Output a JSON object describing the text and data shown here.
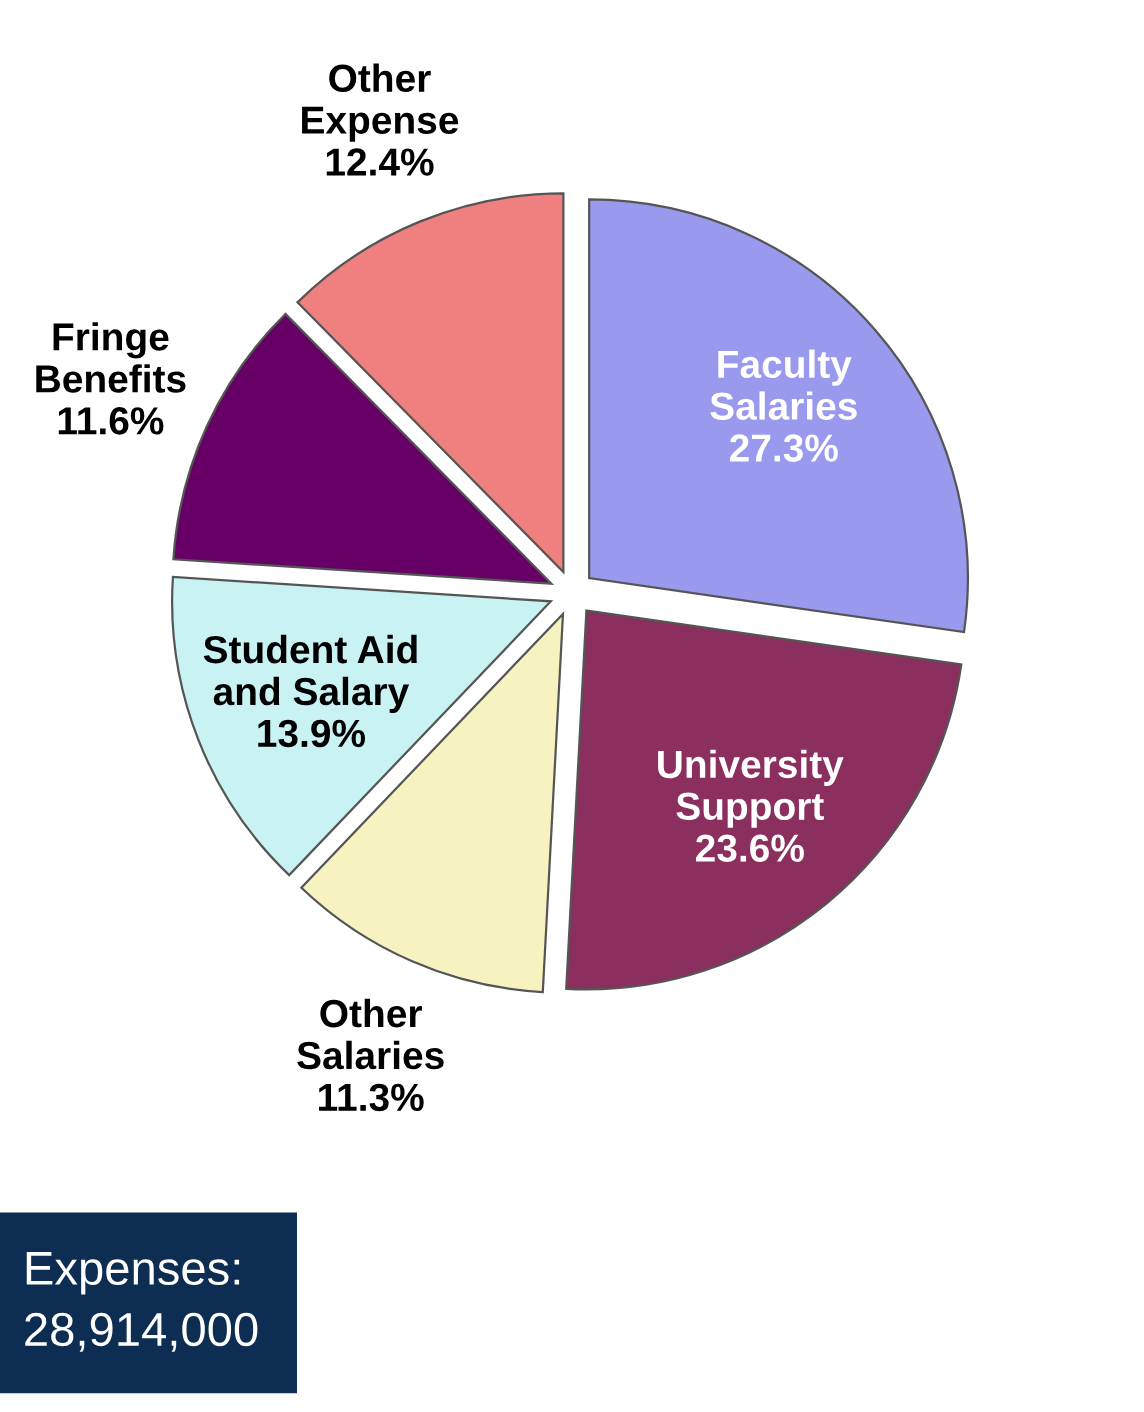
{
  "chart_data": {
    "type": "pie",
    "categories": [
      "Faculty Salaries",
      "Other Expense",
      "Fringe Benefits",
      "Student Aid and Salary",
      "Other Salaries",
      "University Support"
    ],
    "values": [
      27.3,
      12.4,
      11.6,
      13.9,
      11.3,
      23.6
    ],
    "colors": [
      "#9999ee",
      "#f08080",
      "#660066",
      "#c9f3f3",
      "#f7f3c0",
      "#8b2f5e"
    ],
    "value_labels": [
      "27.3%",
      "12.4%",
      "11.6%",
      "13.9%",
      "11.3%",
      "23.6%"
    ],
    "annotations": [
      "Expenses:\n28,914,000"
    ]
  }
}
